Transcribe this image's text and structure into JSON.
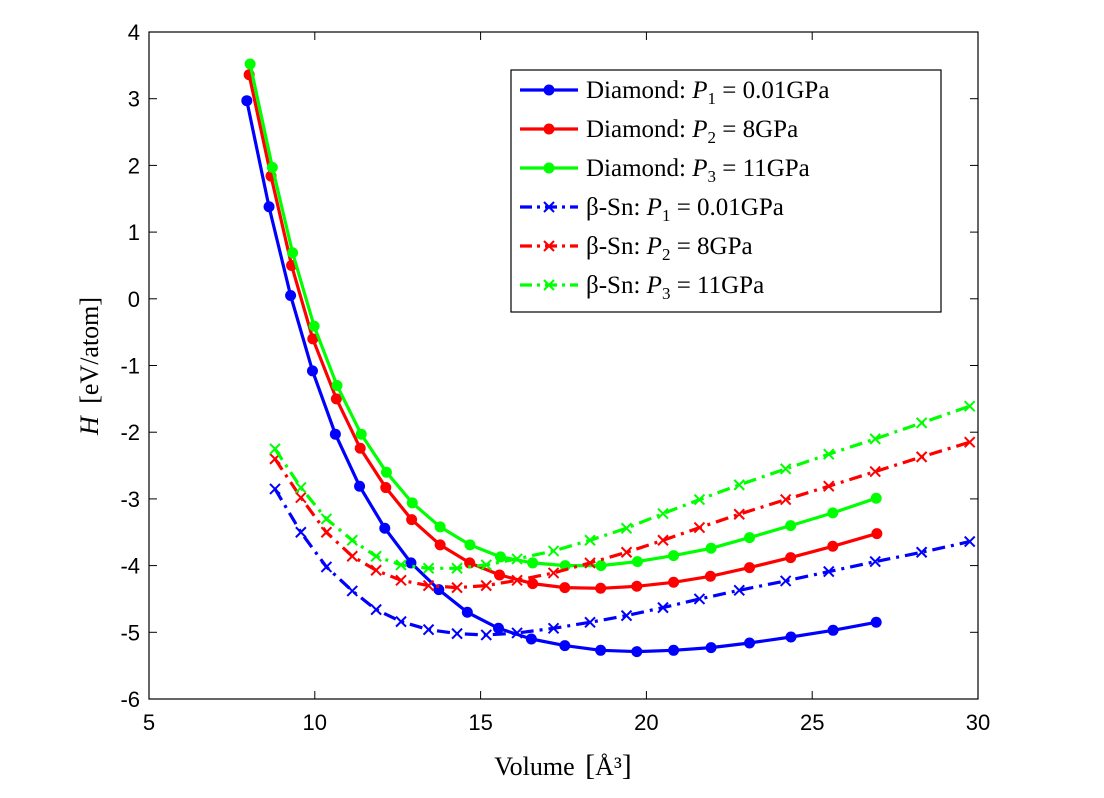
{
  "chart_data": {
    "type": "line",
    "xlabel": "Volume",
    "xlabel_unit": "Å³",
    "ylabel": "H",
    "ylabel_unit": "[eV/atom]",
    "xlim": [
      5,
      30
    ],
    "ylim": [
      -6,
      4
    ],
    "xticks": [
      5,
      10,
      15,
      20,
      25,
      30
    ],
    "yticks": [
      -6,
      -5,
      -4,
      -3,
      -2,
      -1,
      0,
      1,
      2,
      3,
      4
    ],
    "grid": false,
    "legend_position": "top-right",
    "series": [
      {
        "name": "Diamond:  P1 = 0.01GPa",
        "legend": {
          "prefix": "Diamond:  ",
          "var": "P",
          "sub": "1",
          "rest": " = 0.01GPa"
        },
        "color": "#0000ff",
        "style": "solid",
        "marker": "dot",
        "x": [
          7.95,
          8.62,
          9.27,
          9.93,
          10.62,
          11.35,
          12.11,
          12.9,
          13.74,
          14.6,
          15.54,
          16.53,
          17.54,
          18.62,
          19.71,
          20.82,
          21.95,
          23.11,
          24.36,
          25.63,
          26.93
        ],
        "y": [
          2.97,
          1.38,
          0.05,
          -1.08,
          -2.03,
          -2.81,
          -3.44,
          -3.96,
          -4.36,
          -4.7,
          -4.94,
          -5.1,
          -5.2,
          -5.27,
          -5.29,
          -5.27,
          -5.23,
          -5.16,
          -5.07,
          -4.97,
          -4.85
        ]
      },
      {
        "name": "Diamond:  P2 = 8GPa",
        "legend": {
          "prefix": "Diamond:  ",
          "var": "P",
          "sub": "2",
          "rest": " = 8GPa"
        },
        "color": "#ff0000",
        "style": "solid",
        "marker": "dot",
        "x": [
          8.02,
          8.68,
          9.3,
          9.94,
          10.65,
          11.37,
          12.14,
          12.92,
          13.78,
          14.67,
          15.57,
          16.57,
          17.54,
          18.62,
          19.71,
          20.82,
          21.93,
          23.11,
          24.35,
          25.62,
          26.95
        ],
        "y": [
          3.36,
          1.84,
          0.5,
          -0.6,
          -1.5,
          -2.24,
          -2.83,
          -3.31,
          -3.69,
          -3.96,
          -4.14,
          -4.27,
          -4.33,
          -4.34,
          -4.31,
          -4.25,
          -4.16,
          -4.03,
          -3.88,
          -3.71,
          -3.52
        ]
      },
      {
        "name": "Diamond:  P3 = 11GPa",
        "legend": {
          "prefix": "Diamond:  ",
          "var": "P",
          "sub": "3",
          "rest": " = 11GPa"
        },
        "color": "#00ff00",
        "style": "solid",
        "marker": "dot",
        "x": [
          8.05,
          8.72,
          9.33,
          9.98,
          10.67,
          11.4,
          12.16,
          12.94,
          13.78,
          14.68,
          15.6,
          16.57,
          17.55,
          18.63,
          19.73,
          20.82,
          21.95,
          23.11,
          24.35,
          25.62,
          26.93
        ],
        "y": [
          3.52,
          1.97,
          0.69,
          -0.41,
          -1.3,
          -2.03,
          -2.6,
          -3.06,
          -3.42,
          -3.69,
          -3.87,
          -3.96,
          -4.0,
          -4.0,
          -3.94,
          -3.85,
          -3.74,
          -3.58,
          -3.4,
          -3.21,
          -2.99
        ]
      },
      {
        "name": "β-Sn:  P1 = 0.01GPa",
        "legend": {
          "prefix": "β-Sn:  ",
          "var": "P",
          "sub": "1",
          "rest": " = 0.01GPa"
        },
        "color": "#0000ff",
        "style": "dashdot",
        "marker": "x",
        "x": [
          8.8,
          9.58,
          10.35,
          11.13,
          11.85,
          12.6,
          13.43,
          14.29,
          15.17,
          16.1,
          17.2,
          18.3,
          19.4,
          20.5,
          21.6,
          22.8,
          24.2,
          25.5,
          26.9,
          28.3,
          29.75
        ],
        "y": [
          -2.85,
          -3.5,
          -4.02,
          -4.38,
          -4.66,
          -4.84,
          -4.96,
          -5.02,
          -5.04,
          -5.01,
          -4.94,
          -4.85,
          -4.75,
          -4.63,
          -4.5,
          -4.37,
          -4.23,
          -4.09,
          -3.94,
          -3.8,
          -3.64
        ]
      },
      {
        "name": "β-Sn:  P2 = 8GPa",
        "legend": {
          "prefix": "β-Sn:  ",
          "var": "P",
          "sub": "2",
          "rest": " = 8GPa"
        },
        "color": "#ff0000",
        "style": "dashdot",
        "marker": "x",
        "x": [
          8.8,
          9.58,
          10.35,
          11.13,
          11.85,
          12.6,
          13.43,
          14.29,
          15.17,
          16.1,
          17.2,
          18.3,
          19.4,
          20.5,
          21.6,
          22.8,
          24.2,
          25.5,
          26.9,
          28.3,
          29.75
        ],
        "y": [
          -2.4,
          -2.98,
          -3.5,
          -3.86,
          -4.07,
          -4.22,
          -4.3,
          -4.33,
          -4.3,
          -4.22,
          -4.11,
          -3.96,
          -3.8,
          -3.62,
          -3.43,
          -3.23,
          -3.01,
          -2.81,
          -2.59,
          -2.37,
          -2.15
        ]
      },
      {
        "name": "β-Sn:  P3 = 11GPa",
        "legend": {
          "prefix": "β-Sn:  ",
          "var": "P",
          "sub": "3",
          "rest": " = 11GPa"
        },
        "color": "#00ff00",
        "style": "dashdot",
        "marker": "x",
        "x": [
          8.8,
          9.58,
          10.35,
          11.13,
          11.85,
          12.6,
          13.43,
          14.29,
          15.17,
          16.1,
          17.2,
          18.3,
          19.4,
          20.5,
          21.6,
          22.8,
          24.2,
          25.5,
          26.9,
          28.3,
          29.75
        ],
        "y": [
          -2.25,
          -2.83,
          -3.3,
          -3.62,
          -3.86,
          -3.99,
          -4.04,
          -4.04,
          -3.99,
          -3.9,
          -3.78,
          -3.62,
          -3.44,
          -3.22,
          -3.01,
          -2.79,
          -2.55,
          -2.33,
          -2.1,
          -1.86,
          -1.61
        ]
      }
    ]
  }
}
